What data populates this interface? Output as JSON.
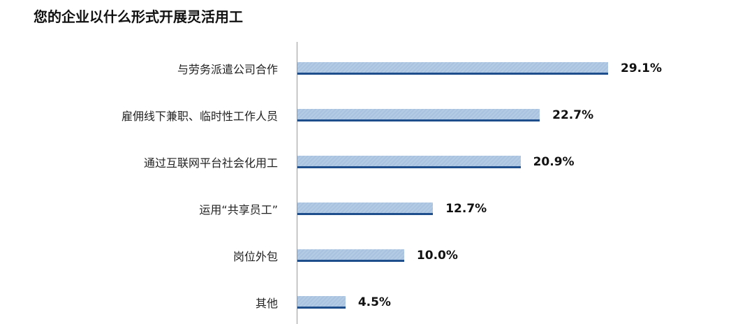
{
  "chart_data": {
    "type": "bar",
    "orientation": "horizontal",
    "title": "您的企业以什么形式开展灵活用工",
    "categories": [
      "与劳务派遣公司合作",
      "雇佣线下兼职、临时性工作人员",
      "通过互联网平台社会化用工",
      "运用“共享员工”",
      "岗位外包",
      "其他"
    ],
    "values": [
      29.1,
      22.7,
      20.9,
      12.7,
      10.0,
      4.5
    ],
    "data_labels": [
      "29.1%",
      "22.7%",
      "20.9%",
      "12.7%",
      "10.0%",
      "4.5%"
    ],
    "xlim": [
      0,
      30
    ],
    "grid": false,
    "colors": {
      "bar_fill": "#b4cbe4",
      "bar_edge": "#1f4e8c"
    }
  }
}
